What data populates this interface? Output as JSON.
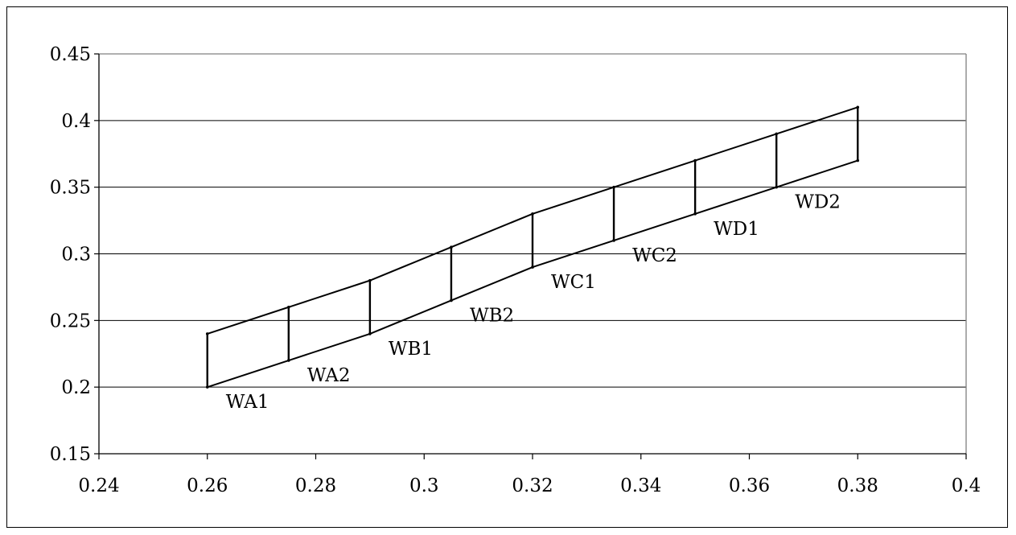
{
  "chart_data": {
    "type": "line",
    "title": "",
    "xlabel": "",
    "ylabel": "",
    "xlim": [
      0.24,
      0.4
    ],
    "ylim": [
      0.15,
      0.45
    ],
    "x_ticks": [
      "0.24",
      "0.26",
      "0.28",
      "0.3",
      "0.32",
      "0.34",
      "0.36",
      "0.38",
      "0.4"
    ],
    "y_ticks": [
      "0.15",
      "0.2",
      "0.25",
      "0.3",
      "0.35",
      "0.4",
      "0.45"
    ],
    "grid": "horizontal",
    "legend": "none",
    "series": [
      {
        "x": [
          0.26,
          0.275,
          0.29,
          0.305,
          0.32,
          0.335,
          0.35,
          0.365,
          0.38
        ],
        "values": [
          0.24,
          0.26,
          0.28,
          0.305,
          0.33,
          0.35,
          0.37,
          0.39,
          0.41
        ]
      },
      {
        "x": [
          0.26,
          0.275,
          0.29,
          0.305,
          0.32,
          0.335,
          0.35,
          0.365,
          0.38
        ],
        "values": [
          0.2,
          0.22,
          0.24,
          0.265,
          0.29,
          0.31,
          0.33,
          0.35,
          0.37
        ]
      }
    ],
    "annotations": [
      {
        "text": "WA1",
        "x": 0.26,
        "y": 0.2
      },
      {
        "text": "WA2",
        "x": 0.275,
        "y": 0.22
      },
      {
        "text": "WB1",
        "x": 0.29,
        "y": 0.24
      },
      {
        "text": "WB2",
        "x": 0.305,
        "y": 0.265
      },
      {
        "text": "WC1",
        "x": 0.32,
        "y": 0.29
      },
      {
        "text": "WC2",
        "x": 0.335,
        "y": 0.31
      },
      {
        "text": "WD1",
        "x": 0.35,
        "y": 0.33
      },
      {
        "text": "WD2",
        "x": 0.365,
        "y": 0.35
      }
    ],
    "colors": {
      "line": "#000000",
      "grid": "#000000",
      "axis": "#000000"
    }
  }
}
